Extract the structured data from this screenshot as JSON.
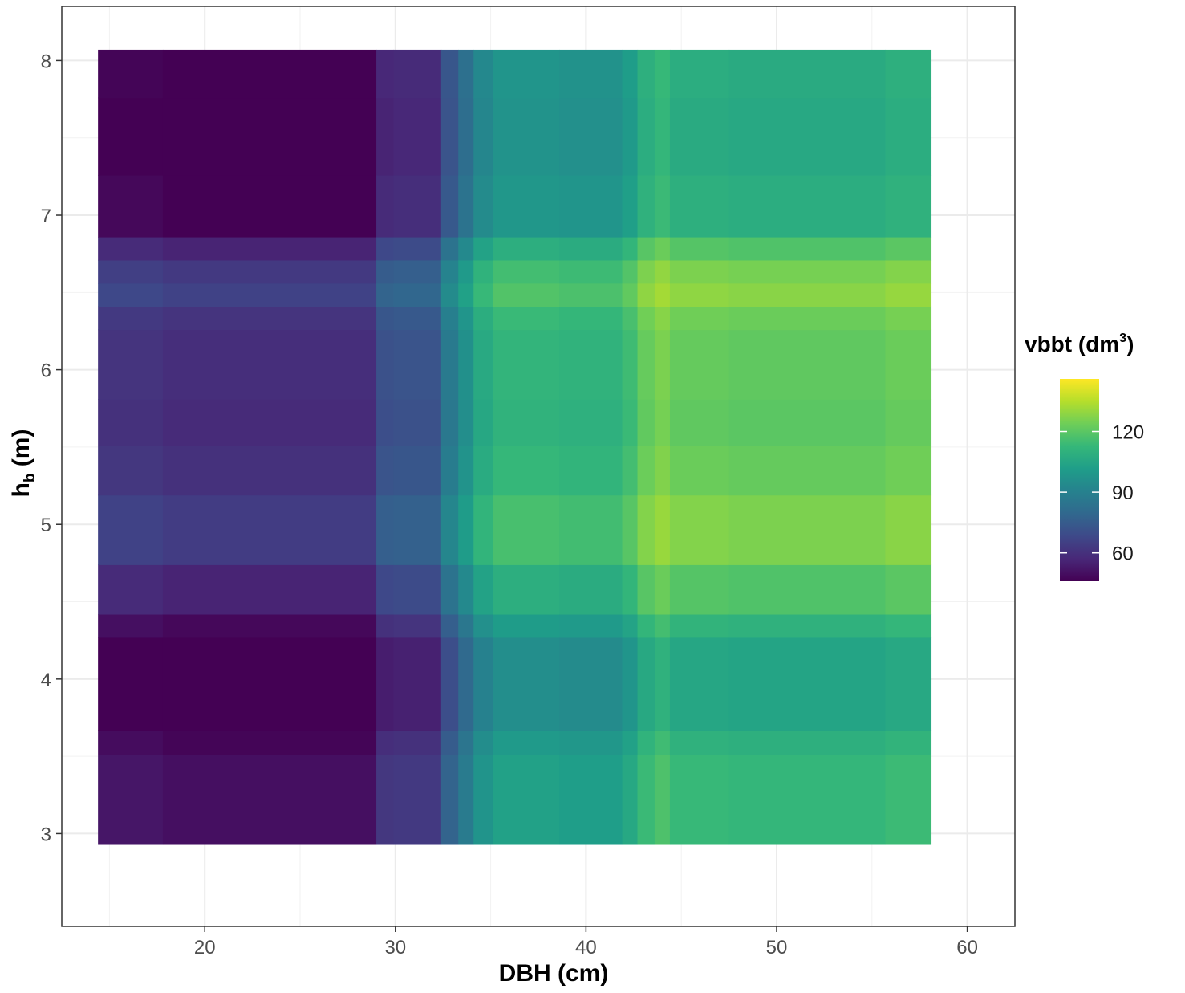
{
  "chart_data": {
    "type": "heatmap",
    "xlabel": "DBH (cm)",
    "ylabel_main": "h",
    "ylabel_sub": "b",
    "ylabel_rest": " (m)",
    "x_ticks": [
      "20",
      "30",
      "40",
      "50",
      "60"
    ],
    "y_ticks": [
      "3",
      "4",
      "5",
      "6",
      "7",
      "8"
    ],
    "xlim": [
      12.5,
      62.5
    ],
    "ylim": [
      2.4,
      8.35
    ],
    "grid": true,
    "legend": {
      "title_main": "vbbt (dm",
      "title_sup": "3",
      "title_end": ")",
      "placement": "right",
      "ticks": [
        "60",
        "90",
        "120"
      ],
      "min": 46,
      "max": 146,
      "colors": [
        "#440154",
        "#482878",
        "#3e4989",
        "#31688e",
        "#26828e",
        "#1f9e89",
        "#35b779",
        "#6ece58",
        "#b5de2b",
        "#fde725"
      ]
    },
    "x_bins": [
      14.4,
      17.8,
      29.0,
      29.9,
      32.4,
      33.3,
      34.1,
      35.1,
      38.6,
      41.9,
      42.7,
      43.6,
      44.4,
      47.5,
      55.7,
      58.1
    ],
    "col_base": [
      46,
      44,
      56,
      57,
      72,
      82,
      92,
      97,
      96,
      100,
      108,
      112,
      107,
      106,
      108
    ],
    "y_bins": [
      2.93,
      3.51,
      3.67,
      4.27,
      4.42,
      4.74,
      5.19,
      5.51,
      5.81,
      6.26,
      6.41,
      6.56,
      6.71,
      6.86,
      7.26,
      7.76,
      8.07
    ],
    "row_offset": [
      6,
      3,
      -2,
      4,
      12,
      20,
      16,
      14,
      15,
      17,
      22,
      19,
      12,
      2,
      0,
      1
    ],
    "scale": [
      1,
      1,
      1,
      1,
      1,
      0.94,
      0.96,
      0.97,
      0.96,
      0.97,
      0.95,
      0.92,
      1,
      1,
      1,
      1
    ]
  }
}
